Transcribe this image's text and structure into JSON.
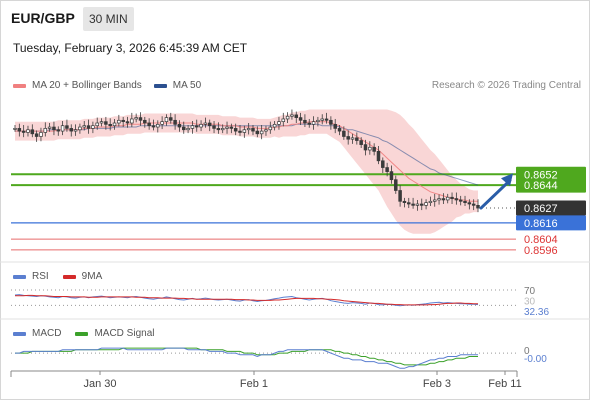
{
  "header": {
    "symbol": "EUR/GBP",
    "timeframe": "30 MIN",
    "datetime": "Tuesday, February 3, 2026 6:45:39 AM CET"
  },
  "legend_main": [
    {
      "label": "MA 20 + Bollinger Bands",
      "color": "#f08080"
    },
    {
      "label": "MA 50",
      "color": "#2c5090"
    }
  ],
  "legend_rsi": [
    {
      "label": "RSI",
      "color": "#5b7fd0"
    },
    {
      "label": "9MA",
      "color": "#d42a2a"
    }
  ],
  "legend_macd": [
    {
      "label": "MACD",
      "color": "#5b7fd0"
    },
    {
      "label": "MACD Signal",
      "color": "#3ba12a"
    }
  ],
  "credit": "Research © 2026 Trading Central",
  "colors": {
    "resistance": "#4fa81e",
    "current": "#333333",
    "pivot": "#3a72d8",
    "support": "#e86a6a",
    "arrow": "#2a5da8",
    "candle": "#3a3a3a",
    "band": "#f7c8c8"
  },
  "chart_data": {
    "type": "candlestick",
    "x_ticks": [
      "Jan 30",
      "Feb 1",
      "Feb 3",
      "Feb 11"
    ],
    "price_range": [
      0.859,
      0.871
    ],
    "price": {
      "current": "0.8627",
      "levels": [
        {
          "value": 0.8652,
          "label": "0.8652",
          "kind": "resistance"
        },
        {
          "value": 0.8644,
          "label": "0.8644",
          "kind": "resistance"
        },
        {
          "value": 0.8616,
          "label": "0.8616",
          "kind": "pivot"
        },
        {
          "value": 0.8604,
          "label": "0.8604",
          "kind": "support"
        },
        {
          "value": 0.8596,
          "label": "0.8596",
          "kind": "support"
        }
      ],
      "close": [
        0.8686,
        0.8684,
        0.8683,
        0.8685,
        0.8682,
        0.868,
        0.8683,
        0.8686,
        0.8687,
        0.8685,
        0.8684,
        0.8688,
        0.8686,
        0.8684,
        0.8685,
        0.8687,
        0.8688,
        0.8686,
        0.8688,
        0.869,
        0.8691,
        0.8689,
        0.8688,
        0.869,
        0.8692,
        0.8691,
        0.869,
        0.8693,
        0.8694,
        0.8692,
        0.869,
        0.8688,
        0.8687,
        0.8689,
        0.8691,
        0.8694,
        0.8692,
        0.8689,
        0.8687,
        0.8685,
        0.8686,
        0.8688,
        0.8687,
        0.8689,
        0.869,
        0.8688,
        0.8686,
        0.8685,
        0.8686,
        0.8687,
        0.8686,
        0.8684,
        0.8683,
        0.8685,
        0.8686,
        0.8684,
        0.8682,
        0.8684,
        0.8685,
        0.8687,
        0.8689,
        0.8691,
        0.8693,
        0.8695,
        0.8696,
        0.8694,
        0.8692,
        0.869,
        0.8689,
        0.8691,
        0.8692,
        0.8693,
        0.8692,
        0.8689,
        0.8686,
        0.8684,
        0.868,
        0.8678,
        0.8679,
        0.8677,
        0.8674,
        0.867,
        0.8672,
        0.8669,
        0.8662,
        0.8657,
        0.8654,
        0.8648,
        0.864,
        0.8632,
        0.8631,
        0.863,
        0.8629,
        0.863,
        0.8629,
        0.8631,
        0.8632,
        0.8633,
        0.8634,
        0.8633,
        0.8635,
        0.8634,
        0.8633,
        0.8632,
        0.8631,
        0.863,
        0.8629,
        0.8627
      ],
      "ma50": [
        0.8684,
        0.8684,
        0.8684,
        0.8684,
        0.8684,
        0.8684,
        0.8684,
        0.8684,
        0.8685,
        0.8685,
        0.8685,
        0.8685,
        0.8685,
        0.8685,
        0.8685,
        0.8685,
        0.8685,
        0.8686,
        0.8686,
        0.8686,
        0.8686,
        0.8686,
        0.8686,
        0.8687,
        0.8687,
        0.8687,
        0.8687,
        0.8687,
        0.8687,
        0.8688,
        0.8688,
        0.8688,
        0.8688,
        0.8688,
        0.8688,
        0.8688,
        0.8688,
        0.8688,
        0.8688,
        0.8688,
        0.8688,
        0.8688,
        0.8688,
        0.8688,
        0.8688,
        0.8688,
        0.8688,
        0.8688,
        0.8688,
        0.8688,
        0.8688,
        0.8688,
        0.8688,
        0.8688,
        0.8688,
        0.8688,
        0.8688,
        0.8688,
        0.8688,
        0.8688,
        0.8688,
        0.8688,
        0.8688,
        0.8688,
        0.8688,
        0.8689,
        0.8689,
        0.8689,
        0.8689,
        0.8689,
        0.8689,
        0.8688,
        0.8688,
        0.8688,
        0.8688,
        0.8687,
        0.8686,
        0.8685,
        0.8685,
        0.8684,
        0.8683,
        0.8682,
        0.8681,
        0.868,
        0.8679,
        0.8677,
        0.8676,
        0.8674,
        0.8672,
        0.867,
        0.8668,
        0.8666,
        0.8664,
        0.8662,
        0.866,
        0.8658,
        0.8656,
        0.8655,
        0.8653,
        0.8652,
        0.8651,
        0.865,
        0.8649,
        0.8648,
        0.8647,
        0.8646,
        0.8645,
        0.8644
      ],
      "ma20": [
        0.8684,
        0.8684,
        0.8684,
        0.8684,
        0.8684,
        0.8684,
        0.8684,
        0.8684,
        0.8684,
        0.8684,
        0.8685,
        0.8685,
        0.8685,
        0.8685,
        0.8685,
        0.8685,
        0.8686,
        0.8686,
        0.8686,
        0.8687,
        0.8687,
        0.8687,
        0.8687,
        0.8688,
        0.8688,
        0.8688,
        0.8689,
        0.8689,
        0.8689,
        0.8689,
        0.869,
        0.869,
        0.869,
        0.869,
        0.869,
        0.869,
        0.869,
        0.869,
        0.869,
        0.869,
        0.869,
        0.869,
        0.8689,
        0.8689,
        0.8689,
        0.8689,
        0.8689,
        0.8689,
        0.8688,
        0.8688,
        0.8688,
        0.8688,
        0.8687,
        0.8687,
        0.8687,
        0.8687,
        0.8686,
        0.8686,
        0.8686,
        0.8686,
        0.8687,
        0.8687,
        0.8688,
        0.8688,
        0.8689,
        0.8689,
        0.869,
        0.869,
        0.8691,
        0.8691,
        0.8691,
        0.8691,
        0.8691,
        0.869,
        0.8689,
        0.8688,
        0.8686,
        0.8684,
        0.8682,
        0.868,
        0.8678,
        0.8676,
        0.8674,
        0.8672,
        0.867,
        0.8667,
        0.8664,
        0.8661,
        0.8658,
        0.8655,
        0.8652,
        0.8649,
        0.8647,
        0.8645,
        0.8643,
        0.8641,
        0.8639,
        0.8638,
        0.8637,
        0.8636,
        0.8635,
        0.8634,
        0.8634,
        0.8633,
        0.8633,
        0.8632,
        0.8632,
        0.8632
      ],
      "bb_width": [
        0.0007,
        0.0007,
        0.0007,
        0.0007,
        0.0007,
        0.0007,
        0.0007,
        0.0007,
        0.0007,
        0.0007,
        0.0007,
        0.0007,
        0.0007,
        0.0007,
        0.0007,
        0.0007,
        0.0007,
        0.0007,
        0.0007,
        0.0007,
        0.0007,
        0.0007,
        0.0007,
        0.0007,
        0.0007,
        0.0007,
        0.0007,
        0.0007,
        0.0007,
        0.0007,
        0.0007,
        0.0007,
        0.0007,
        0.0007,
        0.0007,
        0.0007,
        0.0007,
        0.0007,
        0.0007,
        0.0007,
        0.0007,
        0.0007,
        0.0007,
        0.0007,
        0.0007,
        0.0007,
        0.0007,
        0.0007,
        0.0007,
        0.0007,
        0.0007,
        0.0007,
        0.0007,
        0.0007,
        0.0007,
        0.0007,
        0.0007,
        0.0007,
        0.0007,
        0.0007,
        0.0007,
        0.0008,
        0.0008,
        0.0008,
        0.0009,
        0.0009,
        0.0009,
        0.0009,
        0.0009,
        0.0009,
        0.0009,
        0.0009,
        0.0009,
        0.001,
        0.0011,
        0.0012,
        0.0014,
        0.0016,
        0.0018,
        0.002,
        0.0022,
        0.0024,
        0.0026,
        0.0028,
        0.003,
        0.0033,
        0.0036,
        0.0038,
        0.004,
        0.0041,
        0.0041,
        0.004,
        0.0039,
        0.0037,
        0.0035,
        0.0033,
        0.0031,
        0.0029,
        0.0026,
        0.0023,
        0.002,
        0.0017,
        0.0014,
        0.0012,
        0.001,
        0.0009,
        0.0008,
        0.0008
      ]
    },
    "rsi": {
      "current": "32.36",
      "levels": [
        "70",
        "30"
      ],
      "range": [
        0,
        100
      ],
      "values": [
        57,
        58,
        56,
        55,
        54,
        53,
        55,
        54,
        52,
        51,
        50,
        53,
        52,
        50,
        49,
        51,
        52,
        50,
        52,
        53,
        54,
        52,
        50,
        51,
        52,
        51,
        50,
        52,
        53,
        51,
        49,
        47,
        46,
        48,
        49,
        52,
        50,
        47,
        45,
        44,
        46,
        48,
        46,
        47,
        49,
        47,
        45,
        44,
        45,
        46,
        44,
        42,
        41,
        44,
        45,
        42,
        40,
        42,
        43,
        45,
        47,
        49,
        51,
        52,
        53,
        50,
        48,
        46,
        44,
        46,
        47,
        48,
        46,
        42,
        40,
        38,
        36,
        35,
        37,
        36,
        35,
        33,
        36,
        35,
        32,
        31,
        33,
        32,
        30,
        29,
        30,
        31,
        30,
        32,
        33,
        34,
        36,
        37,
        38,
        36,
        37,
        36,
        35,
        34,
        34,
        33,
        33,
        32
      ],
      "ma9": [
        55,
        55,
        55,
        56,
        56,
        55,
        55,
        55,
        54,
        53,
        53,
        53,
        53,
        52,
        52,
        52,
        52,
        51,
        51,
        51,
        52,
        52,
        52,
        52,
        52,
        52,
        52,
        52,
        51,
        51,
        51,
        50,
        50,
        50,
        49,
        49,
        49,
        49,
        48,
        48,
        47,
        47,
        46,
        46,
        46,
        46,
        46,
        46,
        46,
        46,
        46,
        45,
        45,
        45,
        44,
        44,
        43,
        43,
        43,
        43,
        44,
        44,
        45,
        46,
        47,
        48,
        48,
        48,
        48,
        48,
        47,
        47,
        46,
        46,
        45,
        44,
        42,
        41,
        40,
        39,
        38,
        37,
        36,
        35,
        35,
        34,
        33,
        33,
        32,
        32,
        31,
        31,
        31,
        31,
        31,
        31,
        32,
        32,
        33,
        34,
        35,
        35,
        36,
        36,
        35,
        35,
        34,
        34
      ]
    },
    "macd": {
      "current": "-0.00",
      "zero": "0",
      "range": [
        -0.001,
        0.0006
      ],
      "macd": [
        0.0,
        0.0,
        0.0001,
        0.0001,
        0.0001,
        0.0001,
        0.0001,
        0.0001,
        0.0001,
        0.0001,
        0.0001,
        0.0002,
        0.0002,
        0.0002,
        0.0002,
        0.0002,
        0.0002,
        0.0002,
        0.0002,
        0.0002,
        0.0003,
        0.0003,
        0.0003,
        0.0003,
        0.0003,
        0.0003,
        0.0002,
        0.0002,
        0.0002,
        0.0002,
        0.0002,
        0.0002,
        0.0002,
        0.0002,
        0.0002,
        0.0003,
        0.0003,
        0.0003,
        0.0003,
        0.0003,
        0.0002,
        0.0002,
        0.0002,
        0.0002,
        0.0002,
        0.0001,
        0.0001,
        0.0001,
        0.0001,
        0.0,
        0.0,
        0.0,
        -0.0001,
        -0.0001,
        -0.0001,
        -0.0001,
        -0.0002,
        -0.0001,
        -0.0001,
        -0.0001,
        0.0,
        0.0001,
        0.0001,
        0.0002,
        0.0002,
        0.0002,
        0.0002,
        0.0002,
        0.0002,
        0.0002,
        0.0002,
        0.0002,
        0.0001,
        0.0,
        -0.0001,
        -0.0002,
        -0.0003,
        -0.0003,
        -0.0004,
        -0.0004,
        -0.0004,
        -0.0005,
        -0.0005,
        -0.0005,
        -0.0006,
        -0.0006,
        -0.0006,
        -0.0007,
        -0.0008,
        -0.0009,
        -0.0009,
        -0.0008,
        -0.0008,
        -0.0007,
        -0.0006,
        -0.0005,
        -0.0004,
        -0.0004,
        -0.0003,
        -0.0003,
        -0.0002,
        -0.0002,
        -0.0002,
        -0.0001,
        -0.0001,
        -0.0001,
        -0.0001,
        -0.0001
      ],
      "signal": [
        0.0,
        0.0,
        0.0,
        0.0,
        0.0001,
        0.0001,
        0.0001,
        0.0001,
        0.0001,
        0.0001,
        0.0001,
        0.0001,
        0.0001,
        0.0001,
        0.0002,
        0.0002,
        0.0002,
        0.0002,
        0.0002,
        0.0002,
        0.0002,
        0.0002,
        0.0002,
        0.0002,
        0.0002,
        0.0003,
        0.0003,
        0.0003,
        0.0003,
        0.0003,
        0.0003,
        0.0003,
        0.0003,
        0.0003,
        0.0003,
        0.0003,
        0.0003,
        0.0003,
        0.0003,
        0.0003,
        0.0003,
        0.0003,
        0.0003,
        0.0002,
        0.0002,
        0.0002,
        0.0002,
        0.0002,
        0.0002,
        0.0001,
        0.0001,
        0.0001,
        0.0001,
        0.0,
        0.0,
        0.0,
        -0.0001,
        -0.0001,
        -0.0001,
        -0.0001,
        -0.0001,
        0.0,
        0.0,
        0.0,
        0.0001,
        0.0001,
        0.0001,
        0.0001,
        0.0002,
        0.0002,
        0.0002,
        0.0002,
        0.0002,
        0.0002,
        0.0001,
        0.0001,
        0.0,
        0.0,
        -0.0001,
        -0.0001,
        -0.0002,
        -0.0002,
        -0.0003,
        -0.0003,
        -0.0004,
        -0.0004,
        -0.0005,
        -0.0005,
        -0.0006,
        -0.0006,
        -0.0007,
        -0.0007,
        -0.0007,
        -0.0007,
        -0.0007,
        -0.0007,
        -0.0006,
        -0.0006,
        -0.0005,
        -0.0005,
        -0.0004,
        -0.0004,
        -0.0003,
        -0.0003,
        -0.0003,
        -0.0002,
        -0.0002,
        -0.0002
      ]
    }
  }
}
